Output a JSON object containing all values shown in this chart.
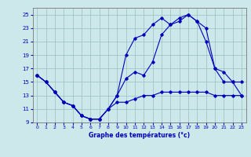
{
  "title": "",
  "xlabel": "Graphe des températures (°c)",
  "ylabel": "",
  "bg_color": "#cde8ea",
  "line_color": "#0000bb",
  "grid_color": "#9bbfbf",
  "ylim": [
    9,
    26
  ],
  "xlim": [
    -0.5,
    23.5
  ],
  "yticks": [
    9,
    11,
    13,
    15,
    17,
    19,
    21,
    23,
    25
  ],
  "xticks": [
    0,
    1,
    2,
    3,
    4,
    5,
    6,
    7,
    8,
    9,
    10,
    11,
    12,
    13,
    14,
    15,
    16,
    17,
    18,
    19,
    20,
    21,
    22,
    23
  ],
  "series": [
    {
      "x": [
        0,
        1,
        2,
        3,
        4,
        5,
        6,
        7,
        8,
        9,
        10,
        11,
        12,
        13,
        14,
        15,
        16,
        17,
        18,
        19,
        20,
        21,
        22,
        23
      ],
      "y": [
        16,
        15,
        13.5,
        12,
        11.5,
        10,
        9.5,
        9.5,
        11,
        12,
        12,
        12.5,
        13,
        13,
        13.5,
        13.5,
        13.5,
        13.5,
        13.5,
        13.5,
        13,
        13,
        13,
        13
      ]
    },
    {
      "x": [
        0,
        1,
        2,
        3,
        4,
        5,
        6,
        7,
        8,
        9,
        10,
        11,
        12,
        13,
        14,
        15,
        16,
        17,
        18,
        19,
        20,
        21,
        22,
        23
      ],
      "y": [
        16,
        15,
        13.5,
        12,
        11.5,
        10,
        9.5,
        9.5,
        11,
        13,
        15.5,
        16.5,
        16,
        18,
        22,
        23.5,
        24,
        25,
        24,
        21,
        17,
        16.5,
        15,
        15
      ]
    },
    {
      "x": [
        0,
        1,
        2,
        3,
        4,
        5,
        6,
        7,
        8,
        9,
        10,
        11,
        12,
        13,
        14,
        15,
        16,
        17,
        18,
        19,
        20,
        21,
        22,
        23
      ],
      "y": [
        16,
        15,
        13.5,
        12,
        11.5,
        10,
        9.5,
        9.5,
        11,
        13,
        19,
        21.5,
        22,
        23.5,
        24.5,
        23.5,
        24.5,
        25,
        24,
        23,
        17,
        15,
        15,
        13
      ]
    }
  ]
}
